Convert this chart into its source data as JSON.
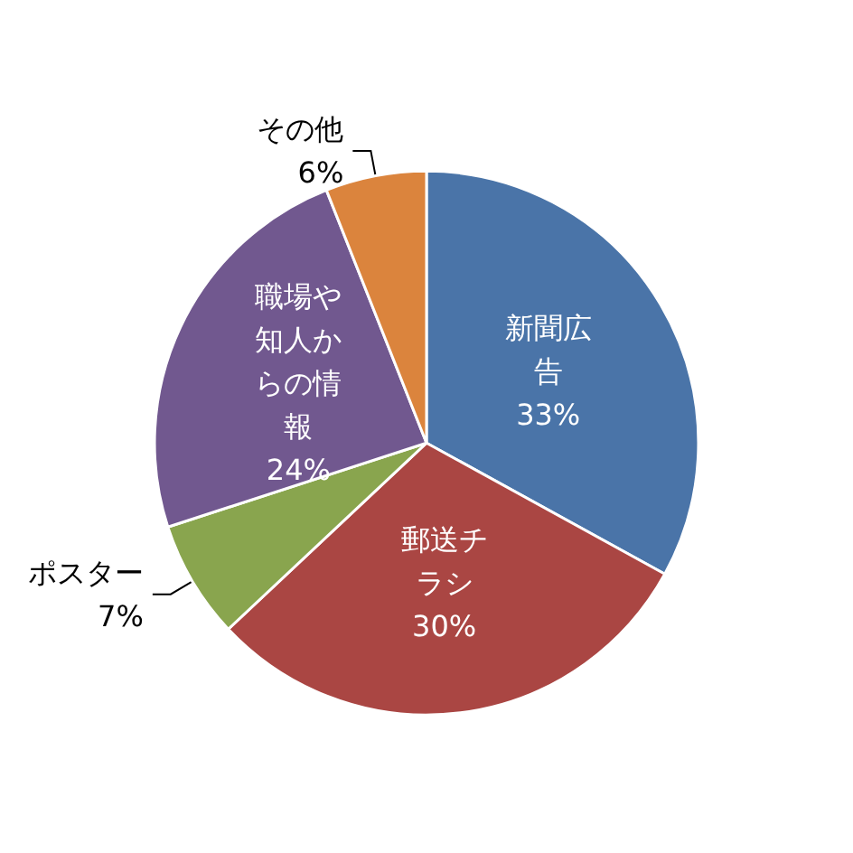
{
  "chart_data": {
    "type": "pie",
    "categories": [
      "新聞広告",
      "郵送チラシ",
      "ポスター",
      "職場や知人からの情報",
      "その他"
    ],
    "values": [
      33,
      30,
      7,
      24,
      6
    ],
    "colors": [
      "#4a74a8",
      "#aa4643",
      "#89a54e",
      "#71588f",
      "#db843d"
    ],
    "value_labels": [
      "33%",
      "30%",
      "7%",
      "24%",
      "6%"
    ],
    "legend": false
  }
}
